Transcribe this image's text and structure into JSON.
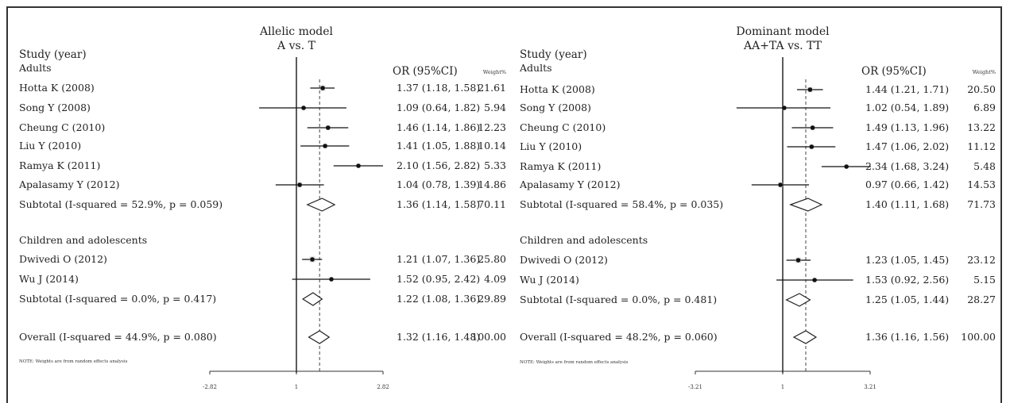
{
  "chart_data": [
    {
      "type": "forest",
      "title": "Allelic model",
      "subtitle": "A vs. T",
      "col_study": "Study (year)",
      "col_or": "OR (95%CI)",
      "col_weight": "Weight%",
      "note": "NOTE: Weights are from random effects analysis",
      "axis": {
        "scale": "log",
        "min": -2.82,
        "max": 2.82,
        "ticks": [
          "-2.82",
          "1",
          "2.82"
        ],
        "ref": 1
      },
      "groups": [
        {
          "name": "Adults",
          "rows": [
            {
              "label": "Hotta K (2008)",
              "or": 1.37,
              "lo": 1.18,
              "hi": 1.58,
              "text": "1.37 (1.18, 1.58)",
              "weight": "21.61"
            },
            {
              "label": "Song Y (2008)",
              "or": 1.09,
              "lo": 0.64,
              "hi": 1.82,
              "text": "1.09 (0.64, 1.82)",
              "weight": "5.94"
            },
            {
              "label": "Cheung C (2010)",
              "or": 1.46,
              "lo": 1.14,
              "hi": 1.86,
              "text": "1.46 (1.14, 1.86)",
              "weight": "12.23"
            },
            {
              "label": "Liu Y (2010)",
              "or": 1.41,
              "lo": 1.05,
              "hi": 1.88,
              "text": "1.41 (1.05, 1.88)",
              "weight": "10.14"
            },
            {
              "label": "Ramya K (2011)",
              "or": 2.1,
              "lo": 1.56,
              "hi": 2.82,
              "text": "2.10 (1.56, 2.82)",
              "weight": "5.33"
            },
            {
              "label": "Apalasamy Y (2012)",
              "or": 1.04,
              "lo": 0.78,
              "hi": 1.39,
              "text": "1.04 (0.78, 1.39)",
              "weight": "14.86"
            }
          ],
          "subtotal": {
            "label": "Subtotal  (I-squared = 52.9%, p = 0.059)",
            "or": 1.36,
            "lo": 1.14,
            "hi": 1.58,
            "text": "1.36 (1.14, 1.58)",
            "weight": "70.11"
          }
        },
        {
          "name": "Children and adolescents",
          "rows": [
            {
              "label": "Dwivedi O (2012)",
              "or": 1.21,
              "lo": 1.07,
              "hi": 1.36,
              "text": "1.21 (1.07, 1.36)",
              "weight": "25.80"
            },
            {
              "label": "Wu J (2014)",
              "or": 1.52,
              "lo": 0.95,
              "hi": 2.42,
              "text": "1.52 (0.95, 2.42)",
              "weight": "4.09"
            }
          ],
          "subtotal": {
            "label": "Subtotal  (I-squared = 0.0%, p = 0.417)",
            "or": 1.22,
            "lo": 1.08,
            "hi": 1.36,
            "text": "1.22 (1.08, 1.36)",
            "weight": "29.89"
          }
        }
      ],
      "overall": {
        "label": "Overall  (I-squared = 44.9%, p = 0.080)",
        "or": 1.32,
        "lo": 1.16,
        "hi": 1.48,
        "text": "1.32 (1.16, 1.48)",
        "weight": "100.00"
      }
    },
    {
      "type": "forest",
      "title": "Dominant model",
      "subtitle": "AA+TA vs. TT",
      "col_study": "Study (year)",
      "col_or": "OR (95%CI)",
      "col_weight": "Weight%",
      "note": "NOTE: Weights are from random effects analysis",
      "axis": {
        "scale": "log",
        "min": -3.21,
        "max": 3.21,
        "ticks": [
          "-3.21",
          "1",
          "3.21"
        ],
        "ref": 1
      },
      "groups": [
        {
          "name": "Adults",
          "rows": [
            {
              "label": "Hotta K (2008)",
              "or": 1.44,
              "lo": 1.21,
              "hi": 1.71,
              "text": "1.44 (1.21, 1.71)",
              "weight": "20.50"
            },
            {
              "label": "Song Y (2008)",
              "or": 1.02,
              "lo": 0.54,
              "hi": 1.89,
              "text": "1.02 (0.54, 1.89)",
              "weight": "6.89"
            },
            {
              "label": "Cheung C (2010)",
              "or": 1.49,
              "lo": 1.13,
              "hi": 1.96,
              "text": "1.49 (1.13, 1.96)",
              "weight": "13.22"
            },
            {
              "label": "Liu Y (2010)",
              "or": 1.47,
              "lo": 1.06,
              "hi": 2.02,
              "text": "1.47 (1.06, 2.02)",
              "weight": "11.12"
            },
            {
              "label": "Ramya K (2011)",
              "or": 2.34,
              "lo": 1.68,
              "hi": 3.24,
              "text": "2.34 (1.68, 3.24)",
              "weight": "5.48"
            },
            {
              "label": "Apalasamy Y (2012)",
              "or": 0.97,
              "lo": 0.66,
              "hi": 1.42,
              "text": "0.97 (0.66, 1.42)",
              "weight": "14.53"
            }
          ],
          "subtotal": {
            "label": "Subtotal  (I-squared = 58.4%, p = 0.035)",
            "or": 1.4,
            "lo": 1.11,
            "hi": 1.68,
            "text": "1.40 (1.11, 1.68)",
            "weight": "71.73"
          }
        },
        {
          "name": "Children and adolescents",
          "rows": [
            {
              "label": "Dwivedi O (2012)",
              "or": 1.23,
              "lo": 1.05,
              "hi": 1.45,
              "text": "1.23 (1.05, 1.45)",
              "weight": "23.12"
            },
            {
              "label": "Wu J (2014)",
              "or": 1.53,
              "lo": 0.92,
              "hi": 2.56,
              "text": "1.53 (0.92, 2.56)",
              "weight": "5.15"
            }
          ],
          "subtotal": {
            "label": "Subtotal  (I-squared = 0.0%, p = 0.481)",
            "or": 1.25,
            "lo": 1.05,
            "hi": 1.44,
            "text": "1.25 (1.05, 1.44)",
            "weight": "28.27"
          }
        }
      ],
      "overall": {
        "label": "Overall  (I-squared = 48.2%, p = 0.060)",
        "or": 1.36,
        "lo": 1.16,
        "hi": 1.56,
        "text": "1.36 (1.16, 1.56)",
        "weight": "100.00"
      }
    }
  ]
}
